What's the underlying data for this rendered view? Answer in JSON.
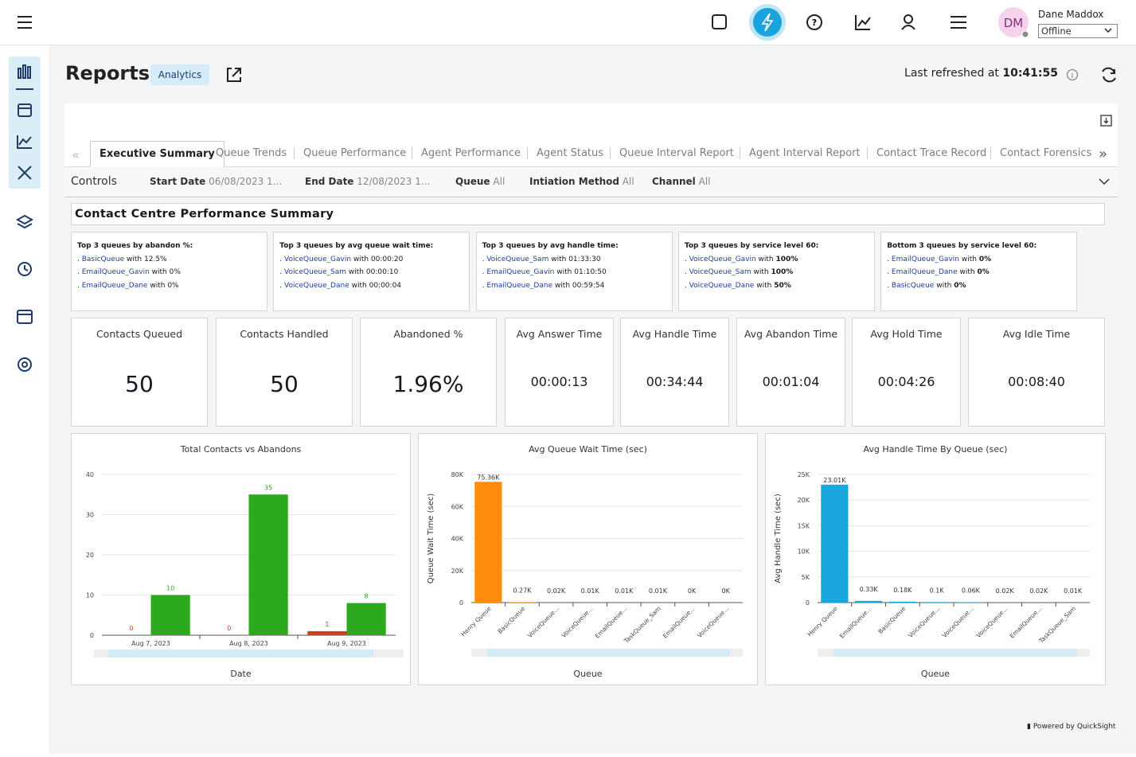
{
  "header": {
    "initials": "DM",
    "user_name": "Dane Maddox",
    "status": "Offline"
  },
  "page": {
    "title": "Reports",
    "badge": "Analytics",
    "refreshed_label": "Last refreshed at",
    "refreshed_time": "10:41:55"
  },
  "tabs": [
    "Executive Summary",
    "Queue Trends",
    "Queue Performance",
    "Agent Performance",
    "Agent Status",
    "Queue Interval Report",
    "Agent Interval Report",
    "Contact Trace Record",
    "Contact Forensics"
  ],
  "controls": {
    "label": "Controls",
    "filters": [
      {
        "name": "Start Date",
        "value": "06/08/2023 1..."
      },
      {
        "name": "End Date",
        "value": "12/08/2023 1..."
      },
      {
        "name": "Queue",
        "value": "All"
      },
      {
        "name": "Intiation Method",
        "value": "All"
      },
      {
        "name": "Channel",
        "value": "All"
      }
    ]
  },
  "summary": {
    "title": "Contact Centre Performance Summary",
    "connector": "with",
    "boxes": [
      {
        "heading": "Top 3 queues by abandon %:",
        "items": [
          {
            "queue": "BasicQueue",
            "value": "12.5%"
          },
          {
            "queue": "EmailQueue_Gavin",
            "value": "0%"
          },
          {
            "queue": "EmailQueue_Dane",
            "value": "0%"
          }
        ]
      },
      {
        "heading": "Top 3 queues by avg queue wait time:",
        "items": [
          {
            "queue": "VoiceQueue_Gavin",
            "value": "00:00:20"
          },
          {
            "queue": "VoiceQueue_Sam",
            "value": "00:00:10"
          },
          {
            "queue": "VoiceQueue_Dane",
            "value": "00:00:04"
          }
        ]
      },
      {
        "heading": "Top 3 queues by avg handle time:",
        "items": [
          {
            "queue": "VoiceQueue_Sam",
            "value": "01:33:30"
          },
          {
            "queue": "EmailQueue_Gavin",
            "value": "01:10:50"
          },
          {
            "queue": "EmailQueue_Dane",
            "value": "00:59:54"
          }
        ]
      },
      {
        "heading": "Top 3 queues by service level 60:",
        "items": [
          {
            "queue": "VoiceQueue_Gavin",
            "value": "100%"
          },
          {
            "queue": "VoiceQueue_Sam",
            "value": "100%"
          },
          {
            "queue": "VoiceQueue_Dane",
            "value": "50%"
          }
        ]
      },
      {
        "heading": "Bottom 3 queues by service level 60:",
        "items": [
          {
            "queue": "EmailQueue_Gavin",
            "value": "0%"
          },
          {
            "queue": "EmailQueue_Dane",
            "value": "0%"
          },
          {
            "queue": "BasicQueue",
            "value": "0%"
          }
        ]
      }
    ]
  },
  "kpis": [
    {
      "label": "Contacts Queued",
      "value": 50
    },
    {
      "label": "Contacts Handled",
      "value": 50
    },
    {
      "label": "Abandoned %",
      "value": "1.96%"
    },
    {
      "label": "Avg Answer Time",
      "value": "00:00:13"
    },
    {
      "label": "Avg Handle Time",
      "value": "00:34:44"
    },
    {
      "label": "Avg Abandon Time",
      "value": "00:01:04"
    },
    {
      "label": "Avg Hold Time",
      "value": "00:04:26"
    },
    {
      "label": "Avg Idle Time",
      "value": "00:08:40"
    }
  ],
  "chart_data": [
    {
      "type": "grouped_bar",
      "title": "Total Contacts vs Abandons",
      "x_label": "Date",
      "categories": [
        "Aug 7, 2023",
        "Aug 8, 2023",
        "Aug 9, 2023"
      ],
      "series": [
        {
          "color": "#d13f1c",
          "values": [
            0,
            0,
            1
          ]
        },
        {
          "color": "#2ca91c",
          "values": [
            10,
            35,
            8
          ]
        }
      ],
      "ylim": [
        0,
        40
      ],
      "yticks": [
        0,
        10,
        20,
        30,
        40
      ],
      "grid": true
    },
    {
      "type": "bar",
      "title": "Avg Queue Wait Time (sec)",
      "x_label": "Queue",
      "y_label": "Queue Wait Time (sec)",
      "categories": [
        "Henry Queue",
        "BasicQueue",
        "VoiceQueue...",
        "VoiceQueue...",
        "EmailQueue...",
        "TaskQueue_Sam",
        "EmailQueue...",
        "VoiceQueue..."
      ],
      "values": [
        75360,
        270,
        20,
        10,
        10,
        10,
        0,
        0
      ],
      "value_labels": [
        "75.36K",
        "0.27K",
        "0.02K",
        "0.01K",
        "0.01K",
        "0.01K",
        "0K",
        "0K"
      ],
      "color": "#ff8c0a",
      "ylim": [
        0,
        80000
      ],
      "yticks": [
        0,
        {
          "value": 20000,
          "label": "20K"
        },
        {
          "value": 40000,
          "label": "40K"
        },
        {
          "value": 60000,
          "label": "60K"
        },
        {
          "value": 80000,
          "label": "80K"
        }
      ],
      "grid": true
    },
    {
      "type": "bar",
      "title": "Avg Handle Time By Queue (sec)",
      "x_label": "Queue",
      "y_label": "Avg Handle Time (sec)",
      "categories": [
        "Henry Queue",
        "EmailQueue...",
        "BasicQueue",
        "VoiceQueue...",
        "VoiceQueue...",
        "VoiceQueue...",
        "EmailQueue...",
        "TaskQueue_Sam"
      ],
      "values": [
        23010,
        330,
        180,
        100,
        60,
        20,
        20,
        10
      ],
      "value_labels": [
        "23.01K",
        "0.33K",
        "0.18K",
        "0.1K",
        "0.06K",
        "0.02K",
        "0.02K",
        "0.01K"
      ],
      "color": "#1aa7de",
      "ylim": [
        0,
        25000
      ],
      "yticks": [
        0,
        {
          "value": 5000,
          "label": "5K"
        },
        {
          "value": 10000,
          "label": "10K"
        },
        {
          "value": 15000,
          "label": "15K"
        },
        {
          "value": 20000,
          "label": "20K"
        },
        {
          "value": 25000,
          "label": "25K"
        }
      ],
      "grid": true
    }
  ],
  "footer": "Powered by QuickSight"
}
